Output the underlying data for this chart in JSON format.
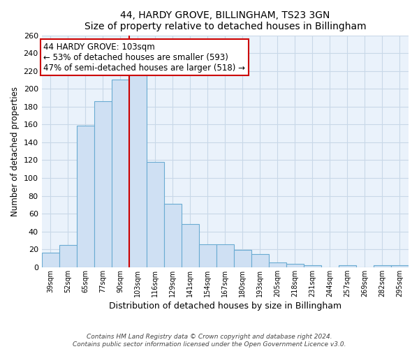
{
  "title": "44, HARDY GROVE, BILLINGHAM, TS23 3GN",
  "subtitle": "Size of property relative to detached houses in Billingham",
  "xlabel": "Distribution of detached houses by size in Billingham",
  "ylabel": "Number of detached properties",
  "bin_labels": [
    "39sqm",
    "52sqm",
    "65sqm",
    "77sqm",
    "90sqm",
    "103sqm",
    "116sqm",
    "129sqm",
    "141sqm",
    "154sqm",
    "167sqm",
    "180sqm",
    "193sqm",
    "205sqm",
    "218sqm",
    "231sqm",
    "244sqm",
    "257sqm",
    "269sqm",
    "282sqm",
    "295sqm"
  ],
  "bar_heights": [
    16,
    25,
    159,
    186,
    210,
    218,
    118,
    71,
    48,
    26,
    26,
    19,
    15,
    5,
    4,
    2,
    0,
    2,
    0,
    2,
    2
  ],
  "bar_color": "#cfe0f3",
  "bar_edge_color": "#6aabd2",
  "highlight_bar_index": 5,
  "highlight_line_color": "#cc0000",
  "annotation_line1": "44 HARDY GROVE: 103sqm",
  "annotation_line2": "← 53% of detached houses are smaller (593)",
  "annotation_line3": "47% of semi-detached houses are larger (518) →",
  "annotation_box_color": "#ffffff",
  "annotation_box_edge_color": "#cc0000",
  "ylim": [
    0,
    260
  ],
  "yticks": [
    0,
    20,
    40,
    60,
    80,
    100,
    120,
    140,
    160,
    180,
    200,
    220,
    240,
    260
  ],
  "footnote1": "Contains HM Land Registry data © Crown copyright and database right 2024.",
  "footnote2": "Contains public sector information licensed under the Open Government Licence v3.0.",
  "bg_color": "#ffffff",
  "grid_color": "#c8d8e8"
}
